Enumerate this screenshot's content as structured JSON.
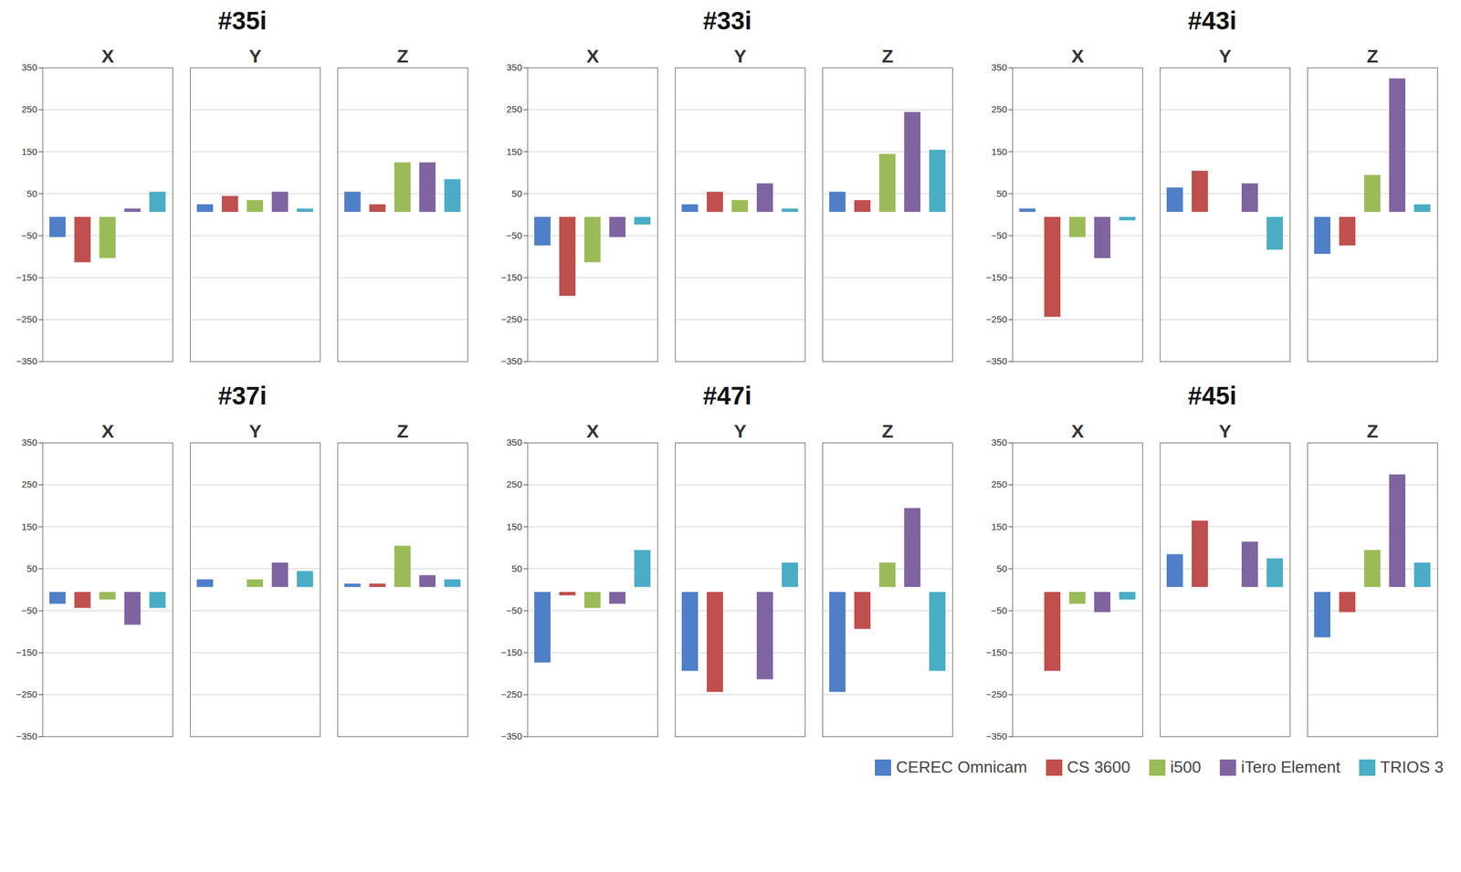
{
  "chart_data": [
    {
      "type": "bar",
      "title": "#35i",
      "categories": [
        "X",
        "Y",
        "Z"
      ],
      "ylim": [
        -350,
        350
      ],
      "yticks": [
        -350,
        -250,
        -150,
        -50,
        50,
        150,
        250,
        350
      ],
      "grid": true,
      "legend": "bottom-right",
      "series": [
        {
          "name": "CEREC Omnicam",
          "color": "#4f7fc8",
          "values": [
            -60,
            30,
            60
          ]
        },
        {
          "name": "CS 3600",
          "color": "#c0504d",
          "values": [
            -120,
            50,
            30
          ]
        },
        {
          "name": "i500",
          "color": "#9bbb59",
          "values": [
            -110,
            40,
            130
          ]
        },
        {
          "name": "iTero Element",
          "color": "#8064a2",
          "values": [
            20,
            60,
            130
          ]
        },
        {
          "name": "TRIOS 3",
          "color": "#4bacc6",
          "values": [
            60,
            20,
            90
          ]
        }
      ]
    },
    {
      "type": "bar",
      "title": "#33i",
      "categories": [
        "X",
        "Y",
        "Z"
      ],
      "ylim": [
        -350,
        350
      ],
      "yticks": [
        -350,
        -250,
        -150,
        -50,
        50,
        150,
        250,
        350
      ],
      "grid": true,
      "legend": "bottom-right",
      "series": [
        {
          "name": "CEREC Omnicam",
          "color": "#4f7fc8",
          "values": [
            -80,
            30,
            60
          ]
        },
        {
          "name": "CS 3600",
          "color": "#c0504d",
          "values": [
            -200,
            60,
            40
          ]
        },
        {
          "name": "i500",
          "color": "#9bbb59",
          "values": [
            -120,
            40,
            150
          ]
        },
        {
          "name": "iTero Element",
          "color": "#8064a2",
          "values": [
            -60,
            80,
            250
          ]
        },
        {
          "name": "TRIOS 3",
          "color": "#4bacc6",
          "values": [
            -30,
            20,
            160
          ]
        }
      ]
    },
    {
      "type": "bar",
      "title": "#43i",
      "categories": [
        "X",
        "Y",
        "Z"
      ],
      "ylim": [
        -350,
        350
      ],
      "yticks": [
        -350,
        -250,
        -150,
        -50,
        50,
        150,
        250,
        350
      ],
      "grid": true,
      "legend": "bottom-right",
      "series": [
        {
          "name": "CEREC Omnicam",
          "color": "#4f7fc8",
          "values": [
            20,
            70,
            -100
          ]
        },
        {
          "name": "CS 3600",
          "color": "#c0504d",
          "values": [
            -250,
            110,
            -80
          ]
        },
        {
          "name": "i500",
          "color": "#9bbb59",
          "values": [
            -60,
            0,
            100
          ]
        },
        {
          "name": "iTero Element",
          "color": "#8064a2",
          "values": [
            -110,
            80,
            330
          ]
        },
        {
          "name": "TRIOS 3",
          "color": "#4bacc6",
          "values": [
            -20,
            -90,
            30
          ]
        }
      ]
    },
    {
      "type": "bar",
      "title": "#37i",
      "categories": [
        "X",
        "Y",
        "Z"
      ],
      "ylim": [
        -350,
        350
      ],
      "yticks": [
        -350,
        -250,
        -150,
        -50,
        50,
        150,
        250,
        350
      ],
      "grid": true,
      "legend": "bottom-right",
      "series": [
        {
          "name": "CEREC Omnicam",
          "color": "#4f7fc8",
          "values": [
            -40,
            30,
            20
          ]
        },
        {
          "name": "CS 3600",
          "color": "#c0504d",
          "values": [
            -50,
            0,
            20
          ]
        },
        {
          "name": "i500",
          "color": "#9bbb59",
          "values": [
            -30,
            30,
            110
          ]
        },
        {
          "name": "iTero Element",
          "color": "#8064a2",
          "values": [
            -90,
            70,
            40
          ]
        },
        {
          "name": "TRIOS 3",
          "color": "#4bacc6",
          "values": [
            -50,
            50,
            30
          ]
        }
      ]
    },
    {
      "type": "bar",
      "title": "#47i",
      "categories": [
        "X",
        "Y",
        "Z"
      ],
      "ylim": [
        -350,
        350
      ],
      "yticks": [
        -350,
        -250,
        -150,
        -50,
        50,
        150,
        250,
        350
      ],
      "grid": true,
      "legend": "bottom-right",
      "series": [
        {
          "name": "CEREC Omnicam",
          "color": "#4f7fc8",
          "values": [
            -180,
            -200,
            -250
          ]
        },
        {
          "name": "CS 3600",
          "color": "#c0504d",
          "values": [
            -20,
            -250,
            -100
          ]
        },
        {
          "name": "i500",
          "color": "#9bbb59",
          "values": [
            -50,
            0,
            70
          ]
        },
        {
          "name": "iTero Element",
          "color": "#8064a2",
          "values": [
            -40,
            -220,
            200
          ]
        },
        {
          "name": "TRIOS 3",
          "color": "#4bacc6",
          "values": [
            100,
            70,
            -200
          ]
        }
      ]
    },
    {
      "type": "bar",
      "title": "#45i",
      "categories": [
        "X",
        "Y",
        "Z"
      ],
      "ylim": [
        -350,
        350
      ],
      "yticks": [
        -350,
        -250,
        -150,
        -50,
        50,
        150,
        250,
        350
      ],
      "grid": true,
      "legend": "bottom-right",
      "series": [
        {
          "name": "CEREC Omnicam",
          "color": "#4f7fc8",
          "values": [
            -10,
            90,
            -120
          ]
        },
        {
          "name": "CS 3600",
          "color": "#c0504d",
          "values": [
            -200,
            170,
            -60
          ]
        },
        {
          "name": "i500",
          "color": "#9bbb59",
          "values": [
            -40,
            0,
            100
          ]
        },
        {
          "name": "iTero Element",
          "color": "#8064a2",
          "values": [
            -60,
            120,
            280
          ]
        },
        {
          "name": "TRIOS 3",
          "color": "#4bacc6",
          "values": [
            -30,
            80,
            70
          ]
        }
      ]
    }
  ]
}
